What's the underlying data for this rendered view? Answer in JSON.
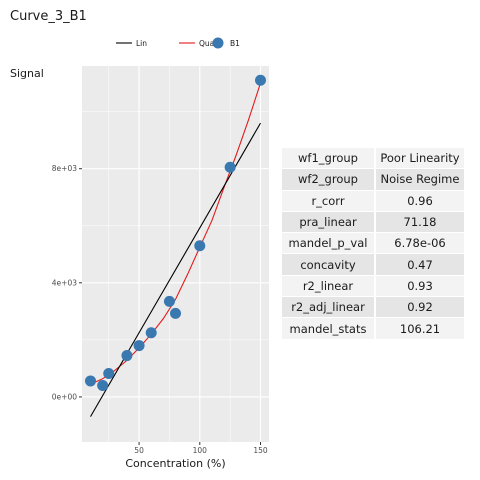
{
  "chart_data": {
    "type": "scatter",
    "title": "Curve_3_B1",
    "xlabel": "Concentration (%)",
    "ylabel": "Signal",
    "xlim": [
      3,
      157
    ],
    "ylim": [
      -1580,
      11600
    ],
    "x_ticks": [
      50,
      100,
      150
    ],
    "x_tick_labels": [
      "50",
      "100",
      "150"
    ],
    "y_ticks": [
      0,
      4000,
      8000
    ],
    "y_tick_labels": [
      "0e+00",
      "4e+03",
      "8e+03"
    ],
    "grid": true,
    "legend_position": "top",
    "legend": [
      {
        "label": "Lin",
        "kind": "line",
        "color": "#000000"
      },
      {
        "label": "Quad",
        "kind": "line",
        "color": "#e31a1c"
      },
      {
        "label": "B1",
        "kind": "point",
        "color": "#3a78b0"
      }
    ],
    "points": {
      "name": "B1",
      "x": [
        10,
        20,
        25,
        40,
        50,
        60,
        75,
        80,
        100,
        125,
        150
      ],
      "y": [
        560,
        400,
        820,
        1450,
        1800,
        2250,
        3350,
        2930,
        5300,
        8050,
        11100
      ]
    },
    "lin_fit": {
      "name": "Lin",
      "x": [
        10,
        150
      ],
      "y": [
        -690,
        9600
      ]
    },
    "quad_fit": {
      "name": "Quad",
      "x": [
        10,
        15,
        20,
        25,
        30,
        40,
        50,
        60,
        70,
        80,
        90,
        100,
        110,
        120,
        130,
        140,
        150
      ],
      "y": [
        470,
        540,
        640,
        770,
        930,
        1280,
        1720,
        2200,
        2750,
        3420,
        4300,
        5250,
        6180,
        7350,
        8480,
        9700,
        11000
      ]
    }
  },
  "stats_table": [
    {
      "key": "wf1_group",
      "value": "Poor Linearity"
    },
    {
      "key": "wf2_group",
      "value": "Noise Regime"
    },
    {
      "key": "r_corr",
      "value": "0.96"
    },
    {
      "key": "pra_linear",
      "value": "71.18"
    },
    {
      "key": "mandel_p_val",
      "value": "6.78e-06"
    },
    {
      "key": "concavity",
      "value": "0.47"
    },
    {
      "key": "r2_linear",
      "value": "0.93"
    },
    {
      "key": "r2_adj_linear",
      "value": "0.92"
    },
    {
      "key": "mandel_stats",
      "value": "106.21"
    }
  ],
  "colors": {
    "panel_bg": "#ebebeb",
    "grid_major": "#ffffff",
    "lin": "#000000",
    "quad": "#e31a1c",
    "point": "#3a78b0"
  }
}
